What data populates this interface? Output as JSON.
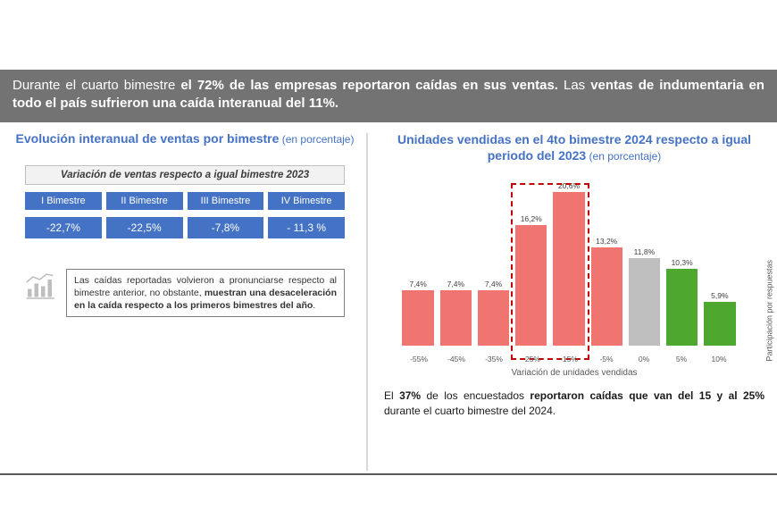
{
  "banner": {
    "t1": "Durante el cuarto bimestre ",
    "b1": "el 72% de las empresas reportaron caídas en sus ventas.",
    "t2": " Las ",
    "b2": "ventas de indumentaria en todo el país sufrieron una caída interanual del 11%.",
    "bg": "#737373",
    "fg": "#ffffff"
  },
  "left": {
    "title_main": "Evolución interanual de ventas por bimestre",
    "title_light": " (en porcentaje)",
    "table_header": "Variación de ventas respecto a igual bimestre 2023",
    "cols": [
      "I Bimestre",
      "II Bimestre",
      "III Bimestre",
      "IV Bimestre"
    ],
    "vals": [
      "-22,7%",
      "-22,5%",
      "-7,8%",
      "- 11,3 %"
    ],
    "cell_bg": "#4472c4",
    "header_bg": "#f2f2f2",
    "note_t1": "Las caídas reportadas volvieron a pronunciarse respecto al bimestre anterior, no obstante, ",
    "note_b": "muestran una desaceleración en la caída respecto a los primeros bimestres del año",
    "note_t2": "."
  },
  "right": {
    "title_main": "Unidades vendidas en el 4to bimestre 2024 respecto a igual periodo del 2023",
    "title_light": " (en porcentaje)",
    "caption_t1": "El ",
    "caption_b1": "37%",
    "caption_t2": " de los encuestados ",
    "caption_b2": "reportaron caídas que van del 15 y al 25%",
    "caption_t3": " durante el cuarto bimestre del 2024."
  },
  "chart": {
    "type": "bar",
    "categories": [
      "-55%",
      "-45%",
      "-35%",
      "-25%",
      "-15%",
      "-5%",
      "0%",
      "5%",
      "10%"
    ],
    "values": [
      7.4,
      7.4,
      7.4,
      16.2,
      20.6,
      13.2,
      11.8,
      10.3,
      5.9
    ],
    "value_labels": [
      "7,4%",
      "7,4%",
      "7,4%",
      "16,2%",
      "20,6%",
      "13,2%",
      "11,8%",
      "10,3%",
      "5,9%"
    ],
    "colors": [
      "#f07470",
      "#f07470",
      "#f07470",
      "#f07470",
      "#f07470",
      "#f07470",
      "#bfbfbf",
      "#4ea72e",
      "#4ea72e"
    ],
    "ylim": [
      0,
      22
    ],
    "xlabel": "Variación de unidades vendidas",
    "ylabel": "Participación por respuestas",
    "bar_width": 0.88,
    "highlight_indices": [
      3,
      4
    ],
    "highlight_color": "#c00000",
    "background": "#ffffff",
    "label_fontsize": 8.5,
    "axis_fontsize": 10
  }
}
